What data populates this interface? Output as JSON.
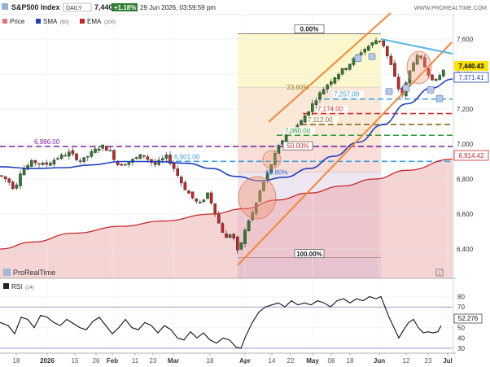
{
  "header": {
    "symbol": "S&P500 Index",
    "interval": "DAILY",
    "price": "7,440.43",
    "change": "+1.18%",
    "datetime": "29 Jun 2026, 03:59:59 pm",
    "site": "WWW.PROREALTIME.COM"
  },
  "legend": {
    "price_label": "Price",
    "sma_label": "SMA",
    "sma_period": "(50)",
    "ema_label": "EMA",
    "ema_period": "(200)"
  },
  "brand": "ProRealTime",
  "rsi_panel": {
    "label": "RSI",
    "period": "(14)",
    "value": "52.276",
    "ticks": [
      "80",
      "70",
      "60",
      "50",
      "40",
      "30"
    ]
  },
  "badges": {
    "price": "7,440.43",
    "sma": "7,371.41",
    "ema": "6,914.42"
  },
  "colors": {
    "candle_up": "#2e7d32",
    "candle_down": "#c62828",
    "sma": "#1e3fbf",
    "ema": "#c62828",
    "channel": "#f5873a",
    "resistance": "#5ab4e6",
    "price_badge": "#ffe400"
  },
  "chart_data": {
    "type": "candlestick",
    "title": "S&P500 Index",
    "y_ticks": [
      "7,600",
      "7,400",
      "7,200",
      "7,000",
      "6,800",
      "6,600",
      "6,400"
    ],
    "x_ticks": [
      "18",
      "2026",
      "15",
      "26",
      "Feb",
      "11",
      "23",
      "Mar",
      "18",
      "Apr",
      "14",
      "22",
      "May",
      "08",
      "18",
      "Jun",
      "12",
      "23",
      "Jul"
    ],
    "ylim": [
      6300,
      7700
    ],
    "horizontal_levels": [
      {
        "label": "6,986.00",
        "value": 6986,
        "color": "#7a1fa2",
        "style": "dashed"
      },
      {
        "label": "6,901.00",
        "value": 6901,
        "color": "#3aa0e0",
        "style": "dashed"
      },
      {
        "label": "7,257.00",
        "value": 7257,
        "color": "#3aa0e0",
        "style": "dashed"
      },
      {
        "label": "7,174.00",
        "value": 7174,
        "color": "#d32f2f",
        "style": "dashed"
      },
      {
        "label": "7,112.00",
        "value": 7112,
        "color": "#8a6a20",
        "style": "dashed"
      },
      {
        "label": "7,050.00",
        "value": 7050,
        "color": "#2e9d3a",
        "style": "dashed"
      }
    ],
    "fibonacci": [
      {
        "label": "0.00%",
        "value": 7630
      },
      {
        "label": "23.60%",
        "value": 7325
      },
      {
        "label": "50.00%",
        "value": 6990
      },
      {
        "label": "61.80%",
        "value": 6840
      },
      {
        "label": "100.00%",
        "value": 6350
      }
    ],
    "rsi_ylim": [
      28,
      82
    ]
  }
}
